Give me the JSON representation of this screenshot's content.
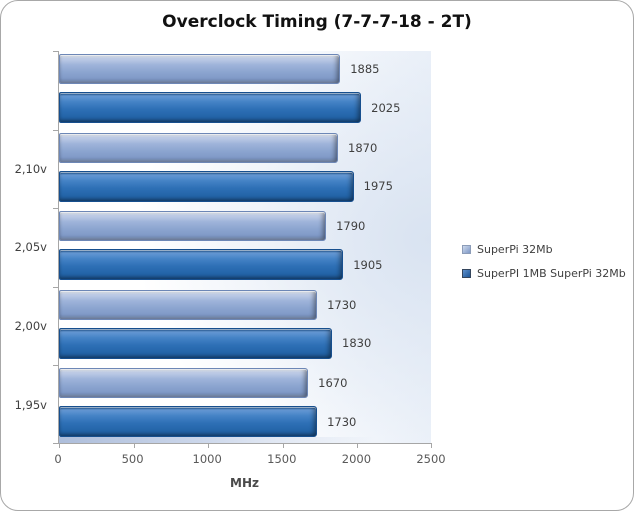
{
  "title": "Overclock Timing (7-7-7-18 - 2T)",
  "chart_data": {
    "type": "bar",
    "orientation": "horizontal",
    "title": "Overclock Timing (7-7-7-18 - 2T)",
    "xlabel": "MHz",
    "xlim": [
      0,
      2500
    ],
    "xticks": [
      "0",
      "500",
      "1000",
      "1500",
      "2000",
      "2500"
    ],
    "categories": [
      "",
      "2,10v",
      "2,05v",
      "2,00v",
      "1,95v"
    ],
    "series": [
      {
        "name": "SuperPi 32Mb",
        "color": "#8fa7d1",
        "values": [
          1885,
          1870,
          1790,
          1730,
          1670
        ]
      },
      {
        "name": "SuperPI 1MB SuperPi 32Mb",
        "color": "#2d6bb0",
        "values": [
          2025,
          1975,
          1905,
          1830,
          1730
        ]
      }
    ],
    "legend_position": "right",
    "grid": false,
    "data_labels": true
  },
  "colors": {
    "series_light": "#8fa7d1",
    "series_dark": "#2d6bb0",
    "axis": "#a6a6a6",
    "label_text": "#3f3f3f",
    "tick_text": "#595959",
    "plot_tint": "#d9e3f1"
  }
}
